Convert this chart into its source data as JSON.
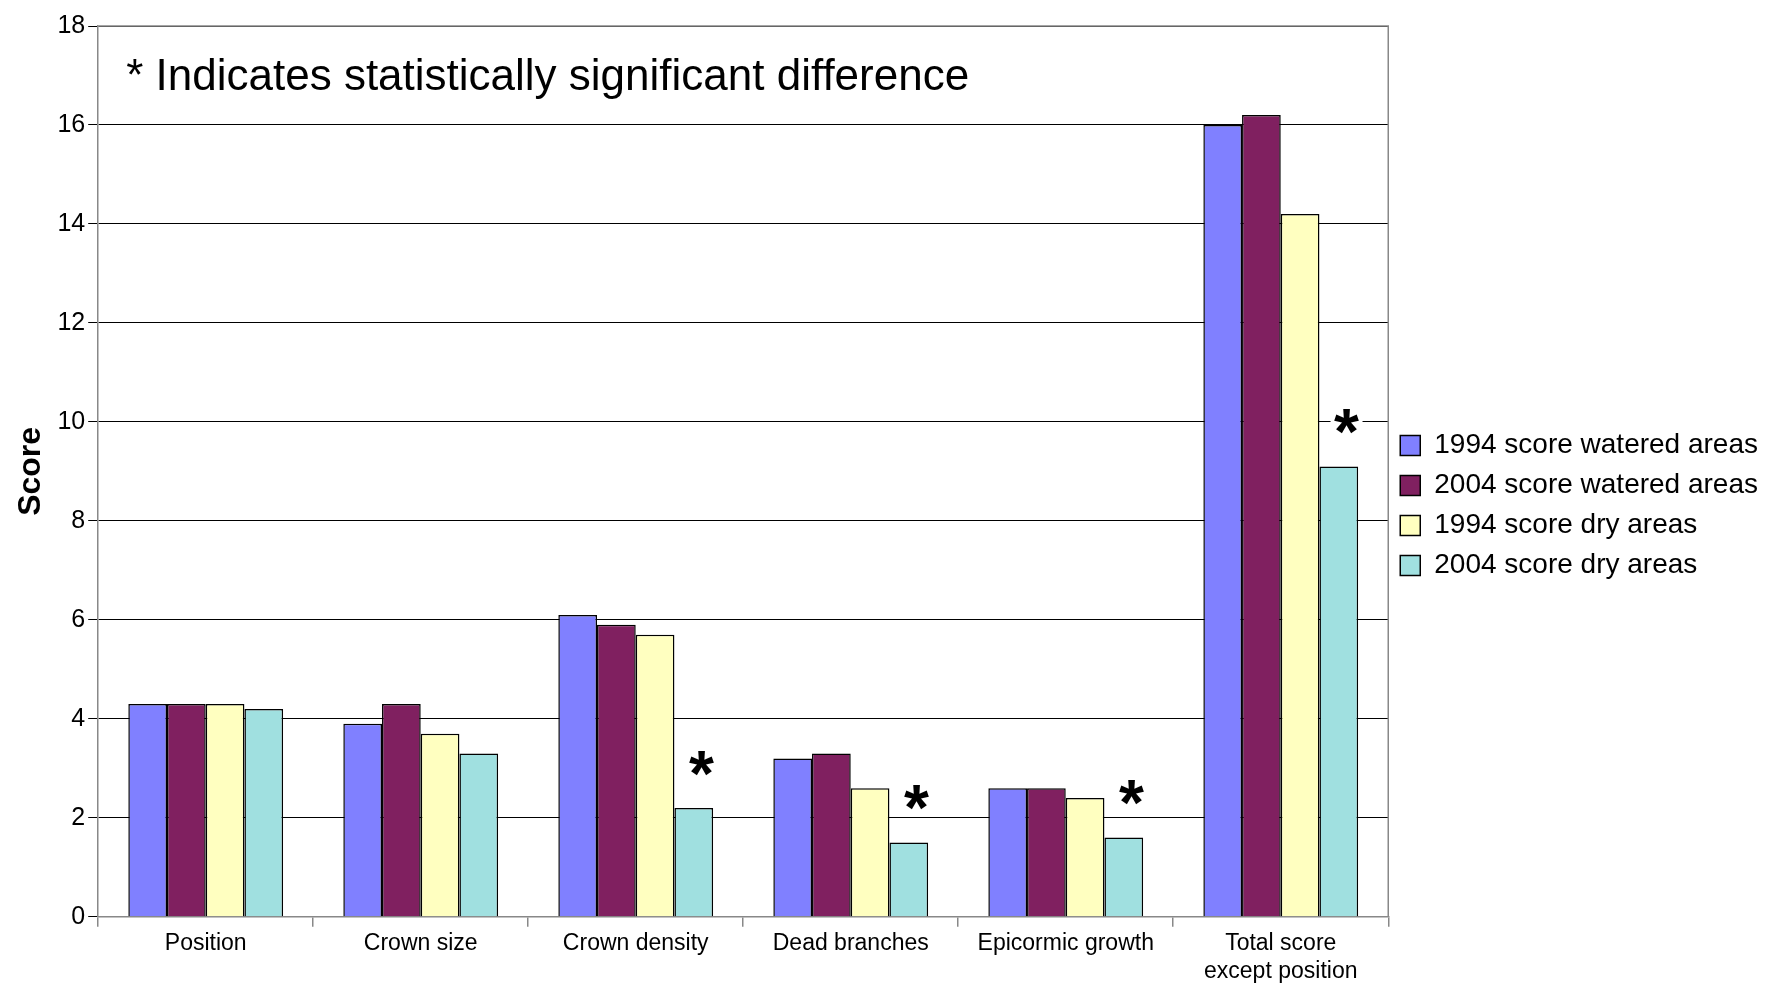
{
  "chart_data": {
    "type": "bar",
    "ylabel": "Score",
    "categories": [
      "Position",
      "Crown size",
      "Crown density",
      "Dead branches",
      "Epicormic growth",
      "Total score except position"
    ],
    "series": [
      {
        "name": "1994 score watered areas",
        "color": "#8080ff",
        "values": [
          4.3,
          3.9,
          6.1,
          3.2,
          2.6,
          16.0
        ]
      },
      {
        "name": "2004 score watered areas",
        "color": "#802060",
        "values": [
          4.3,
          4.3,
          5.9,
          3.3,
          2.6,
          16.2
        ]
      },
      {
        "name": "1994 score dry areas",
        "color": "#ffffc0",
        "values": [
          4.3,
          3.7,
          5.7,
          2.6,
          2.4,
          14.2
        ]
      },
      {
        "name": "2004 score dry areas",
        "color": "#a0e0e0",
        "values": [
          4.2,
          3.3,
          2.2,
          1.5,
          1.6,
          9.1
        ]
      }
    ],
    "ylim": [
      0,
      18
    ],
    "yticks": [
      0,
      2,
      4,
      6,
      8,
      10,
      12,
      14,
      16,
      18
    ],
    "grid": "y",
    "legend": "right",
    "annotations": [
      "* Indicates statistically significant difference",
      {
        "text": "*",
        "x": "Crown density",
        "y": 2.2
      },
      {
        "text": "*",
        "x": "Dead branches",
        "y": 1.5
      },
      {
        "text": "*",
        "x": "Epicormic growth",
        "y": 1.6
      },
      {
        "text": "*",
        "x": "Total score except position",
        "y": 9.1
      }
    ]
  }
}
